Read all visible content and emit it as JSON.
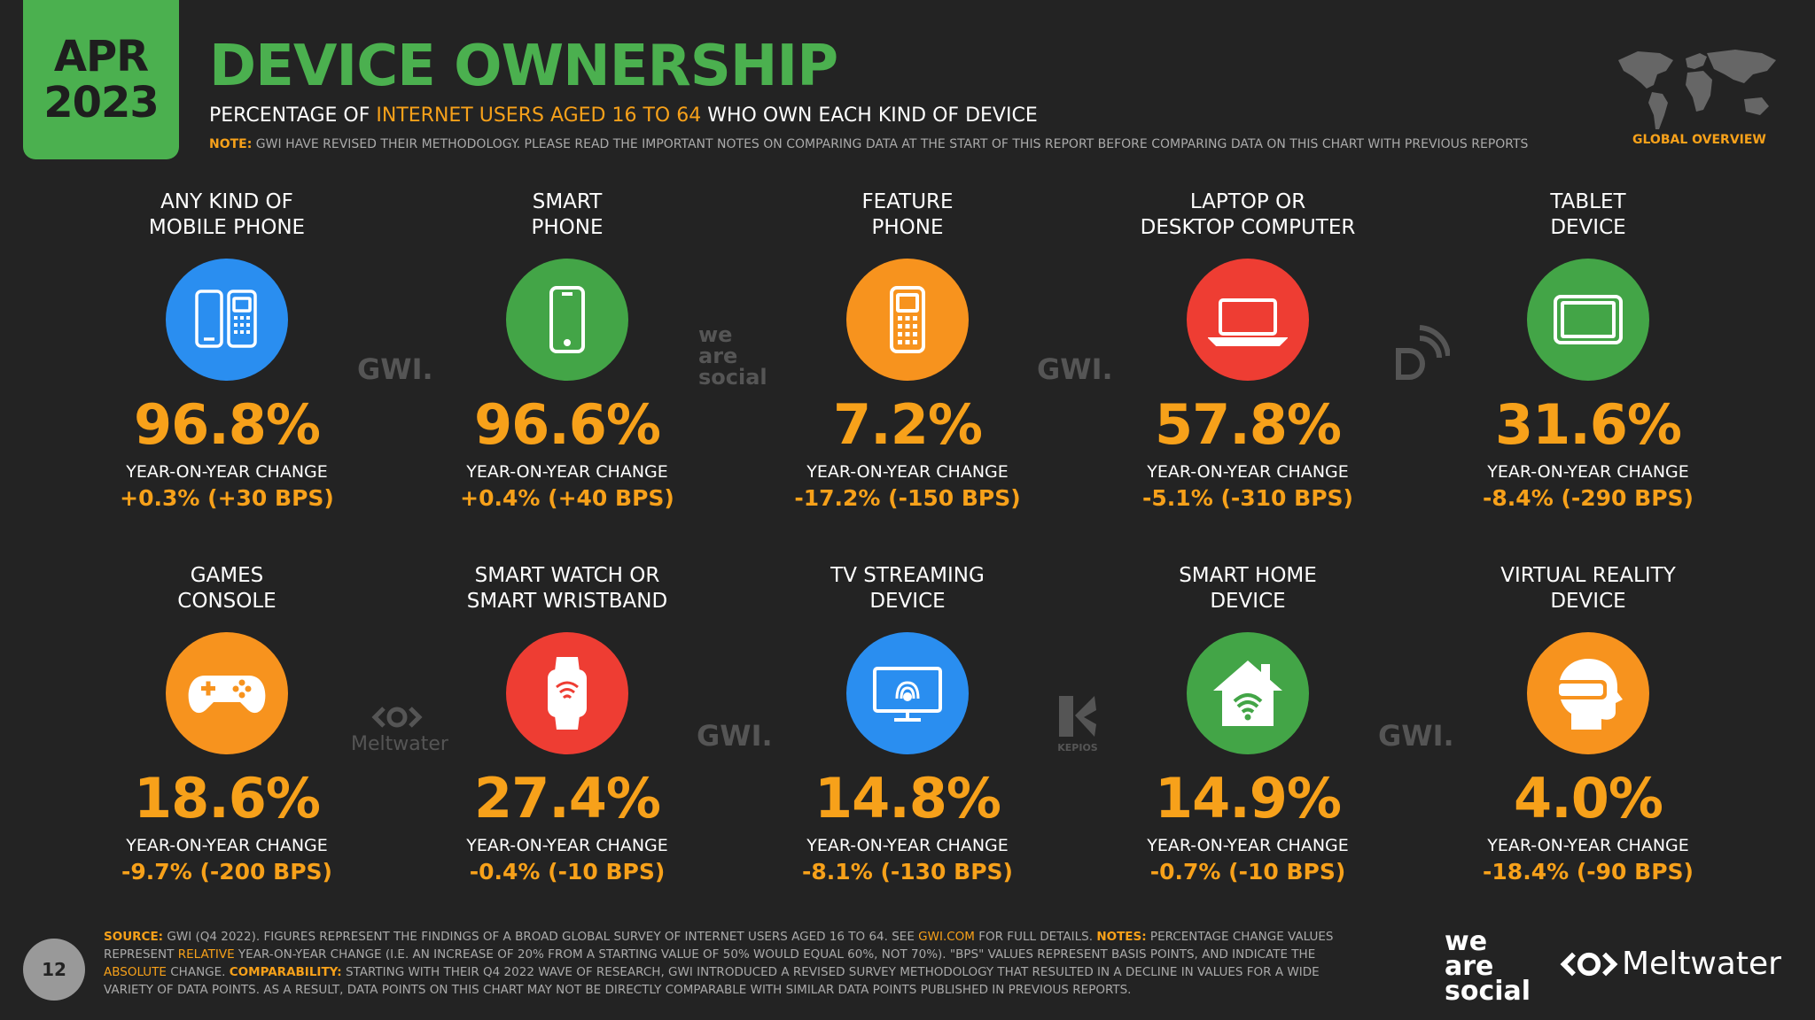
{
  "badge": {
    "month": "APR",
    "year": "2023"
  },
  "title": "DEVICE OWNERSHIP",
  "subtitle": {
    "pre": "PERCENTAGE OF ",
    "highlight": "INTERNET USERS AGED 16 TO 64",
    "post": " WHO OWN EACH KIND OF DEVICE"
  },
  "note": {
    "label": "NOTE:",
    "text": " GWI HAVE REVISED THEIR METHODOLOGY. PLEASE READ THE IMPORTANT NOTES ON COMPARING DATA AT THE START OF THIS REPORT BEFORE COMPARING DATA ON THIS CHART WITH PREVIOUS REPORTS"
  },
  "global_label": "GLOBAL OVERVIEW",
  "yoy_label": "YEAR-ON-YEAR CHANGE",
  "colors": {
    "green": "#4bb04f",
    "blue": "#2a8ef0",
    "orange": "#f7931e",
    "red": "#ee3d33",
    "accent": "#f7a11a"
  },
  "devices": [
    {
      "line1": "ANY KIND OF",
      "line2": "MOBILE PHONE",
      "value": "96.8%",
      "change": "+0.3% (+30 BPS)",
      "color": "#2a8ef0",
      "icon": "mobile-phones-icon"
    },
    {
      "line1": "SMART",
      "line2": "PHONE",
      "value": "96.6%",
      "change": "+0.4% (+40 BPS)",
      "color": "#43a547",
      "icon": "smartphone-icon"
    },
    {
      "line1": "FEATURE",
      "line2": "PHONE",
      "value": "7.2%",
      "change": "-17.2% (-150 BPS)",
      "color": "#f7931e",
      "icon": "feature-phone-icon"
    },
    {
      "line1": "LAPTOP OR",
      "line2": "DESKTOP COMPUTER",
      "value": "57.8%",
      "change": "-5.1% (-310 BPS)",
      "color": "#ee3d33",
      "icon": "laptop-icon"
    },
    {
      "line1": "TABLET",
      "line2": "DEVICE",
      "value": "31.6%",
      "change": "-8.4% (-290 BPS)",
      "color": "#43a547",
      "icon": "tablet-icon"
    },
    {
      "line1": "GAMES",
      "line2": "CONSOLE",
      "value": "18.6%",
      "change": "-9.7% (-200 BPS)",
      "color": "#f7931e",
      "icon": "gamepad-icon"
    },
    {
      "line1": "SMART WATCH OR",
      "line2": "SMART WRISTBAND",
      "value": "27.4%",
      "change": "-0.4% (-10 BPS)",
      "color": "#ee3d33",
      "icon": "smartwatch-icon"
    },
    {
      "line1": "TV STREAMING",
      "line2": "DEVICE",
      "value": "14.8%",
      "change": "-8.1% (-130 BPS)",
      "color": "#2a8ef0",
      "icon": "tv-streaming-icon"
    },
    {
      "line1": "SMART HOME",
      "line2": "DEVICE",
      "value": "14.9%",
      "change": "-0.7% (-10 BPS)",
      "color": "#43a547",
      "icon": "smart-home-icon"
    },
    {
      "line1": "VIRTUAL REALITY",
      "line2": "DEVICE",
      "value": "4.0%",
      "change": "-18.4% (-90 BPS)",
      "color": "#f7931e",
      "icon": "vr-headset-icon"
    }
  ],
  "watermarks": {
    "gwi": "GWI.",
    "we": "we",
    "are": "are",
    "social": "social",
    "meltwater": "Meltwater",
    "kepios": "KEPIOS"
  },
  "page_number": "12",
  "source": {
    "label": "SOURCE:",
    "t1": " GWI (Q4 2022). FIGURES REPRESENT THE FINDINGS OF A BROAD GLOBAL SURVEY OF INTERNET USERS AGED 16 TO 64. SEE ",
    "link": "GWI.COM",
    "t2": " FOR FULL DETAILS. ",
    "notes_label": "NOTES:",
    "t3": " PERCENTAGE CHANGE VALUES REPRESENT ",
    "relative": "RELATIVE",
    "t4": " YEAR-ON-YEAR CHANGE (I.E. AN INCREASE OF 20% FROM A STARTING VALUE OF 50% WOULD EQUAL 60%, NOT 70%). \"BPS\" VALUES REPRESENT BASIS POINTS, AND INDICATE THE ",
    "absolute": "ABSOLUTE",
    "t5": " CHANGE. ",
    "comp_label": "COMPARABILITY:",
    "t6": " STARTING WITH THEIR Q4 2022 WAVE OF RESEARCH, GWI INTRODUCED A REVISED SURVEY METHODOLOGY THAT RESULTED IN A DECLINE IN VALUES FOR A WIDE VARIETY OF DATA POINTS. AS A RESULT, DATA POINTS ON THIS CHART MAY NOT BE DIRECTLY COMPARABLE WITH SIMILAR DATA POINTS PUBLISHED IN PREVIOUS REPORTS."
  }
}
